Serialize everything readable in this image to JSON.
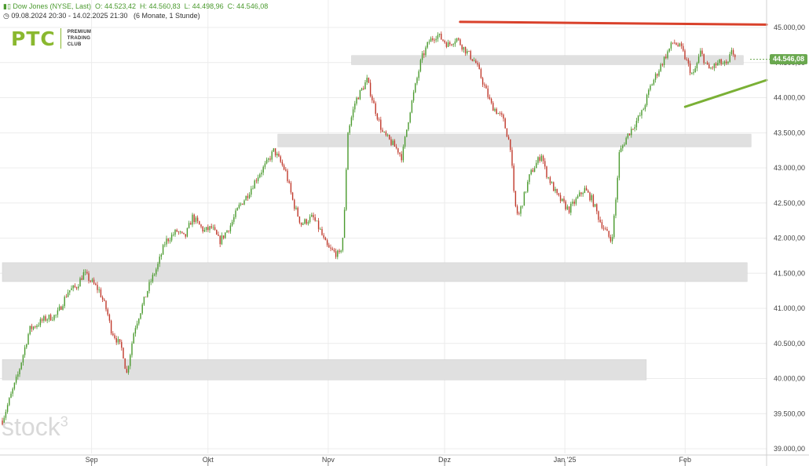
{
  "header": {
    "instrument": "Dow Jones (NYSE, Last)",
    "open": "O: 44.523,42",
    "high": "H: 44.560,83",
    "low": "L: 44.498,96",
    "close": "C: 44.546,08",
    "range": "09.08.2024 20:30 - 14.02.2025 21:30",
    "period": "(6 Monate, 1 Stunde)"
  },
  "logo": {
    "main": "PTC",
    "line1": "PREMIUM",
    "line2": "TRADING",
    "line3": "CLUB"
  },
  "watermark": "stock",
  "watermark_sup": "3",
  "colors": {
    "up_candle": "#4a9a2e",
    "down_candle": "#c0392b",
    "resistance_line": "#d9412b",
    "support_line": "#7ab035",
    "zone_fill": "#e0e0e0",
    "grid": "#ececec",
    "last_badge": "#6aa84f"
  },
  "chart_data": {
    "type": "candlestick",
    "title": "",
    "xlabel": "",
    "ylabel": "",
    "ylim": [
      38950,
      45100
    ],
    "y_ticks": [
      39000,
      39500,
      40000,
      40500,
      41000,
      41500,
      42000,
      42500,
      43000,
      43500,
      44000,
      44500,
      45000
    ],
    "y_tick_labels": [
      "39.000,00",
      "39.500,00",
      "40.000,00",
      "40.500,00",
      "41.000,00",
      "41.500,00",
      "42.000,00",
      "42.500,00",
      "43.000,00",
      "43.500,00",
      "44.000,00",
      "44.500,00",
      "45.000,00"
    ],
    "x_ticks": [
      {
        "label": "Sep",
        "date": "2024-09-01"
      },
      {
        "label": "Okt",
        "date": "2024-10-01"
      },
      {
        "label": "Nov",
        "date": "2024-11-01"
      },
      {
        "label": "Dez",
        "date": "2024-12-01"
      },
      {
        "label": "Jan '25",
        "date": "2025-01-01"
      },
      {
        "label": "Feb",
        "date": "2025-02-01"
      }
    ],
    "x_range": [
      "2024-08-09",
      "2025-02-22"
    ],
    "last_price": "44.546,08",
    "grid": true,
    "path": [
      [
        "2024-08-09",
        39400
      ],
      [
        "2024-08-13",
        40050
      ],
      [
        "2024-08-16",
        40700
      ],
      [
        "2024-08-20",
        40850
      ],
      [
        "2024-08-23",
        40900
      ],
      [
        "2024-08-26",
        41250
      ],
      [
        "2024-08-28",
        41300
      ],
      [
        "2024-08-30",
        41500
      ],
      [
        "2024-09-03",
        41250
      ],
      [
        "2024-09-05",
        40950
      ],
      [
        "2024-09-06",
        40700
      ],
      [
        "2024-09-09",
        40400
      ],
      [
        "2024-09-10",
        40050
      ],
      [
        "2024-09-12",
        40700
      ],
      [
        "2024-09-16",
        41350
      ],
      [
        "2024-09-18",
        41600
      ],
      [
        "2024-09-20",
        41950
      ],
      [
        "2024-09-23",
        42100
      ],
      [
        "2024-09-25",
        42000
      ],
      [
        "2024-09-27",
        42300
      ],
      [
        "2024-09-30",
        42100
      ],
      [
        "2024-10-02",
        42150
      ],
      [
        "2024-10-04",
        41950
      ],
      [
        "2024-10-07",
        42200
      ],
      [
        "2024-10-09",
        42450
      ],
      [
        "2024-10-11",
        42600
      ],
      [
        "2024-10-14",
        42900
      ],
      [
        "2024-10-16",
        43050
      ],
      [
        "2024-10-18",
        43250
      ],
      [
        "2024-10-21",
        42950
      ],
      [
        "2024-10-23",
        42500
      ],
      [
        "2024-10-25",
        42200
      ],
      [
        "2024-10-28",
        42300
      ],
      [
        "2024-10-30",
        42100
      ],
      [
        "2024-10-31",
        41950
      ],
      [
        "2024-11-01",
        41850
      ],
      [
        "2024-11-04",
        41750
      ],
      [
        "2024-11-05",
        42100
      ],
      [
        "2024-11-06",
        43500
      ],
      [
        "2024-11-08",
        43950
      ],
      [
        "2024-11-11",
        44250
      ],
      [
        "2024-11-13",
        43850
      ],
      [
        "2024-11-15",
        43500
      ],
      [
        "2024-11-19",
        43250
      ],
      [
        "2024-11-20",
        43150
      ],
      [
        "2024-11-22",
        43800
      ],
      [
        "2024-11-25",
        44550
      ],
      [
        "2024-11-27",
        44800
      ],
      [
        "2024-11-29",
        44900
      ],
      [
        "2024-12-02",
        44750
      ],
      [
        "2024-12-04",
        44850
      ],
      [
        "2024-12-06",
        44700
      ],
      [
        "2024-12-09",
        44500
      ],
      [
        "2024-12-11",
        44200
      ],
      [
        "2024-12-13",
        43900
      ],
      [
        "2024-12-16",
        43700
      ],
      [
        "2024-12-18",
        43300
      ],
      [
        "2024-12-19",
        42500
      ],
      [
        "2024-12-20",
        42300
      ],
      [
        "2024-12-23",
        42900
      ],
      [
        "2024-12-26",
        43200
      ],
      [
        "2024-12-27",
        42950
      ],
      [
        "2024-12-30",
        42600
      ],
      [
        "2025-01-02",
        42400
      ],
      [
        "2025-01-06",
        42700
      ],
      [
        "2025-01-08",
        42550
      ],
      [
        "2025-01-10",
        42250
      ],
      [
        "2025-01-13",
        41950
      ],
      [
        "2025-01-14",
        42450
      ],
      [
        "2025-01-15",
        43200
      ],
      [
        "2025-01-17",
        43450
      ],
      [
        "2025-01-21",
        43800
      ],
      [
        "2025-01-23",
        44150
      ],
      [
        "2025-01-27",
        44600
      ],
      [
        "2025-01-29",
        44800
      ],
      [
        "2025-01-31",
        44700
      ],
      [
        "2025-02-03",
        44300
      ],
      [
        "2025-02-05",
        44650
      ],
      [
        "2025-02-07",
        44400
      ],
      [
        "2025-02-10",
        44500
      ],
      [
        "2025-02-12",
        44450
      ],
      [
        "2025-02-13",
        44700
      ],
      [
        "2025-02-14",
        44546
      ]
    ],
    "zones": [
      {
        "from": "2024-11-07",
        "to": "2025-02-16",
        "low": 44470,
        "high": 44600
      },
      {
        "from": "2024-10-19",
        "to": "2025-02-18",
        "low": 43300,
        "high": 43480
      },
      {
        "from": "2024-08-09",
        "to": "2025-02-17",
        "low": 41380,
        "high": 41650
      },
      {
        "from": "2024-08-09",
        "to": "2025-01-22",
        "low": 39980,
        "high": 40270
      }
    ],
    "trendlines": [
      {
        "kind": "resistance",
        "from": [
          "2024-12-05",
          45080
        ],
        "to": [
          "2025-02-22",
          45040
        ]
      },
      {
        "kind": "support",
        "from": [
          "2025-02-01",
          43870
        ],
        "to": [
          "2025-02-22",
          44250
        ]
      }
    ]
  }
}
